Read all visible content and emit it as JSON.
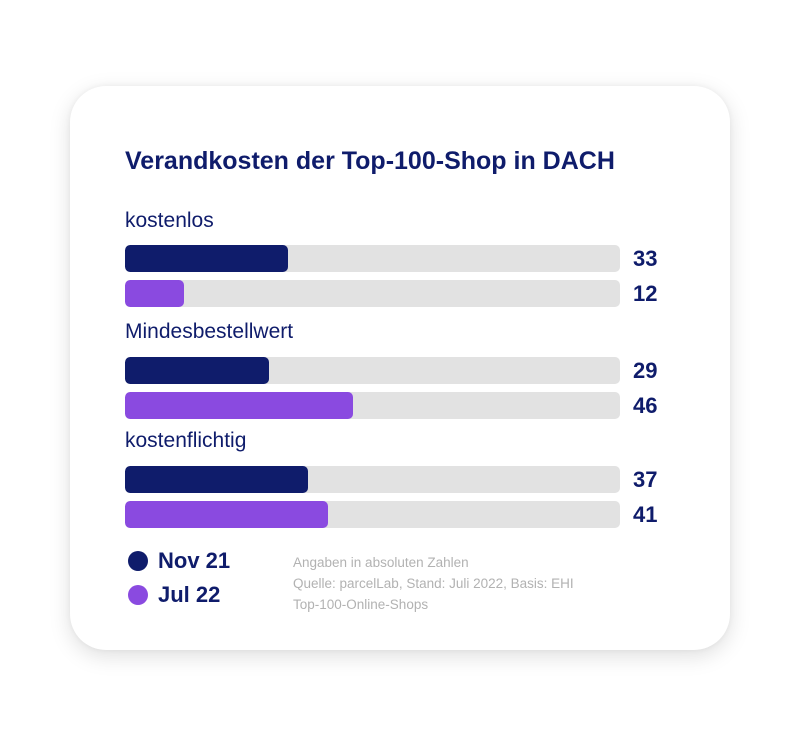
{
  "chart_data": {
    "type": "bar",
    "orientation": "horizontal",
    "title": "Verandkosten der Top-100-Shop in DACH",
    "categories": [
      "kostenlos",
      "Mindesbestellwert",
      "kostenflichtig"
    ],
    "series": [
      {
        "name": "Nov 21",
        "color": "#0f1c6b",
        "values": [
          33,
          29,
          37
        ]
      },
      {
        "name": "Jul 22",
        "color": "#8a4ae0",
        "values": [
          12,
          46,
          41
        ]
      }
    ],
    "xlim": [
      0,
      100
    ],
    "grid": false,
    "legend_position": "bottom-left",
    "notes": [
      "Angaben in absoluten Zahlen",
      "Quelle: parcelLab, Stand: Juli 2022, Basis: EHI",
      "Top-100-Online-Shops"
    ]
  }
}
